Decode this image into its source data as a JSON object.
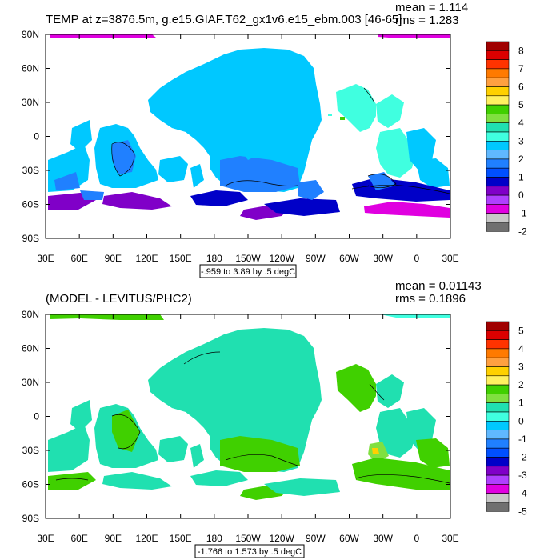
{
  "chart_data": [
    {
      "type": "contour-map",
      "title": "TEMP at z=3876.5m, g.e15.GIAF.T62_gx1v6.e15_ebm.003 [46-65]",
      "stats": {
        "mean_label": "mean = 1.114",
        "rms_label": "rms = 1.283"
      },
      "range_label": "-.959 to 3.89 by .5 degC",
      "x_ticks": [
        "30E",
        "60E",
        "90E",
        "120E",
        "150E",
        "180",
        "150W",
        "120W",
        "90W",
        "60W",
        "30W",
        "0",
        "30E"
      ],
      "y_ticks": [
        "90N",
        "60N",
        "30N",
        "0",
        "30S",
        "60S",
        "90S"
      ],
      "colorbar": {
        "labels": [
          "8",
          "7",
          "6",
          "5",
          "4",
          "3",
          "2",
          "1",
          "0",
          "-1",
          "-2"
        ],
        "colors": [
          "#a00000",
          "#dd0000",
          "#ff3300",
          "#ff7a00",
          "#ffa040",
          "#ffd000",
          "#fff060",
          "#40d000",
          "#80e040",
          "#20e0b0",
          "#40ffe0",
          "#00c8ff",
          "#60b8ff",
          "#2080ff",
          "#0050ff",
          "#0000c8",
          "#8000c8",
          "#b040ff",
          "#e000e0",
          "#c8c8c8",
          "#707070"
        ]
      }
    },
    {
      "type": "contour-map",
      "title": "(MODEL - LEVITUS/PHC2)",
      "stats": {
        "mean_label": "mean = 0.01143",
        "rms_label": "rms = 0.1896"
      },
      "range_label": "-1.766 to 1.573 by .5 degC",
      "x_ticks": [
        "30E",
        "60E",
        "90E",
        "120E",
        "150E",
        "180",
        "150W",
        "120W",
        "90W",
        "60W",
        "30W",
        "0",
        "30E"
      ],
      "y_ticks": [
        "90N",
        "60N",
        "30N",
        "0",
        "30S",
        "60S",
        "90S"
      ],
      "colorbar": {
        "labels": [
          "5",
          "4",
          "3",
          "2",
          "1",
          "0",
          "-1",
          "-2",
          "-3",
          "-4",
          "-5"
        ],
        "colors": [
          "#a00000",
          "#dd0000",
          "#ff3300",
          "#ff7a00",
          "#ffa040",
          "#ffd000",
          "#fff060",
          "#40d000",
          "#80e040",
          "#20e0b0",
          "#40ffe0",
          "#00c8ff",
          "#60b8ff",
          "#2080ff",
          "#0050ff",
          "#0000c8",
          "#8000c8",
          "#b040ff",
          "#e000e0",
          "#c8c8c8",
          "#707070"
        ]
      }
    }
  ]
}
